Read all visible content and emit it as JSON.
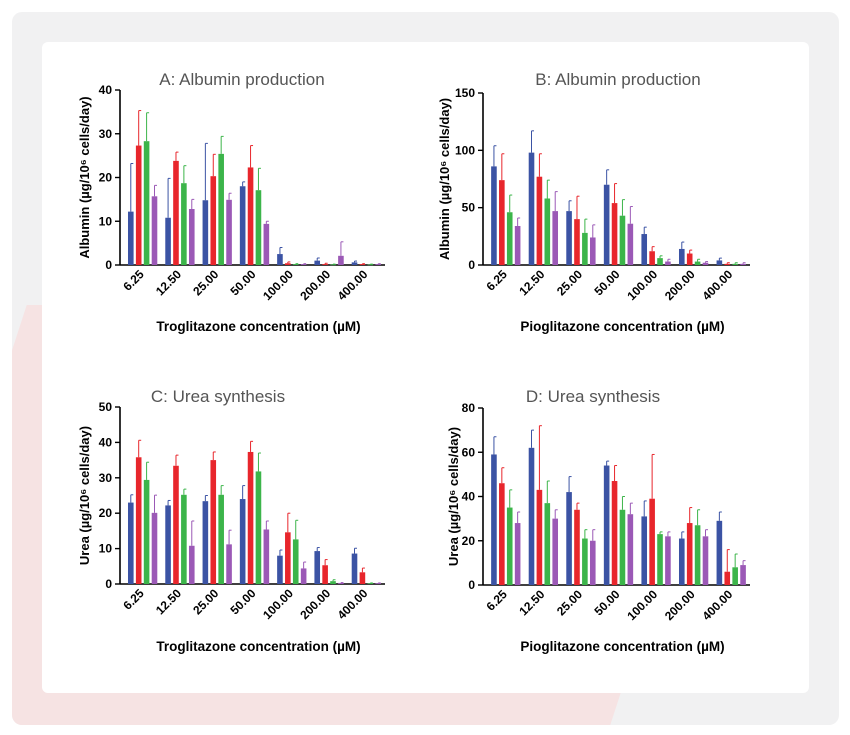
{
  "colors": {
    "s1": "#3b53a4",
    "s2": "#e8262c",
    "s3": "#3cb54a",
    "s4": "#9b59b6"
  },
  "chart_data": [
    {
      "type": "bar",
      "title": "A: Albumin production",
      "ylabel": "Albumin (µg/10⁶ cells/day)",
      "xlabel": "Troglitazone concentration (µM)",
      "categories": [
        "6.25",
        "12.50",
        "25.00",
        "50.00",
        "100.00",
        "200.00",
        "400.00"
      ],
      "yticks": [
        "0",
        "10",
        "20",
        "30",
        "40"
      ],
      "ylim": [
        0,
        40
      ],
      "series": [
        {
          "values": [
            12.2,
            10.8,
            14.8,
            18.0,
            2.5,
            1.0,
            0.6
          ],
          "errors": [
            11,
            9,
            13,
            1,
            1.5,
            0.6,
            0.3
          ]
        },
        {
          "values": [
            27.3,
            23.8,
            20.3,
            22.3,
            0.4,
            0.2,
            0.2
          ],
          "errors": [
            8,
            2,
            5,
            5,
            0.3,
            0.2,
            0.1
          ]
        },
        {
          "values": [
            28.3,
            18.7,
            25.4,
            17.1,
            0.2,
            0.1,
            0.1
          ],
          "errors": [
            6.5,
            4,
            4,
            5,
            0.1,
            0.1,
            0.1
          ]
        },
        {
          "values": [
            15.7,
            12.8,
            14.9,
            9.4,
            0.2,
            2.1,
            0.2
          ],
          "errors": [
            2.5,
            2.2,
            1.5,
            0.6,
            0.1,
            3.2,
            0.1
          ]
        }
      ]
    },
    {
      "type": "bar",
      "title": "B: Albumin production",
      "ylabel": "Albumin (µg/10⁶ cells/day)",
      "xlabel": "Pioglitazone concentration (µM)",
      "categories": [
        "6.25",
        "12.50",
        "25.00",
        "50.00",
        "100.00",
        "200.00",
        "400.00"
      ],
      "yticks": [
        "0",
        "50",
        "100",
        "150"
      ],
      "ylim": [
        0,
        150
      ],
      "series": [
        {
          "values": [
            86,
            98,
            47,
            70,
            27,
            14,
            4
          ],
          "errors": [
            18,
            19,
            9,
            13,
            6,
            6,
            2
          ]
        },
        {
          "values": [
            74,
            77,
            40,
            54,
            12,
            10,
            1
          ],
          "errors": [
            23,
            20,
            20,
            17,
            4,
            3,
            1
          ]
        },
        {
          "values": [
            46,
            58,
            28,
            43,
            6,
            3,
            1
          ],
          "errors": [
            15,
            16,
            12,
            14,
            2,
            2,
            1
          ]
        },
        {
          "values": [
            34,
            47,
            24,
            36,
            3,
            2,
            1
          ],
          "errors": [
            7,
            17,
            11,
            15,
            2,
            1,
            1
          ]
        }
      ]
    },
    {
      "type": "bar",
      "title": "C: Urea synthesis",
      "ylabel": "Urea (µg/10⁶ cells/day)",
      "xlabel": "Troglitazone concentration (µM)",
      "categories": [
        "6.25",
        "12.50",
        "25.00",
        "50.00",
        "100.00",
        "200.00",
        "400.00"
      ],
      "yticks": [
        "0",
        "10",
        "20",
        "30",
        "40",
        "50"
      ],
      "ylim": [
        0,
        50
      ],
      "series": [
        {
          "values": [
            23.0,
            22.2,
            23.4,
            24.0,
            8.0,
            9.3,
            8.6
          ],
          "errors": [
            2.2,
            1.4,
            1.6,
            3.8,
            1.6,
            1.0,
            1.5
          ]
        },
        {
          "values": [
            35.8,
            33.4,
            35.0,
            37.3,
            14.6,
            5.3,
            3.3
          ],
          "errors": [
            4.8,
            3.0,
            2.3,
            3.0,
            5.4,
            1.6,
            1.2
          ]
        },
        {
          "values": [
            29.4,
            25.2,
            25.2,
            31.8,
            12.6,
            0.8,
            0.2
          ],
          "errors": [
            5.0,
            1.6,
            2.6,
            5.2,
            5.4,
            0.4,
            0.1
          ]
        },
        {
          "values": [
            20.1,
            10.8,
            11.2,
            15.4,
            4.4,
            0.3,
            0.2
          ],
          "errors": [
            5.0,
            7.0,
            4.0,
            2.4,
            1.8,
            0.1,
            0.1
          ]
        }
      ]
    },
    {
      "type": "bar",
      "title": "D: Urea synthesis",
      "ylabel": "Urea (µg/10⁶ cells/day)",
      "xlabel": "Pioglitazone concentration (µM)",
      "categories": [
        "6.25",
        "12.50",
        "25.00",
        "50.00",
        "100.00",
        "200.00",
        "400.00"
      ],
      "yticks": [
        "0",
        "20",
        "40",
        "60",
        "80"
      ],
      "ylim": [
        0,
        80
      ],
      "series": [
        {
          "values": [
            59,
            62,
            42,
            54,
            31,
            21,
            29
          ],
          "errors": [
            8,
            8,
            7,
            2,
            7,
            3,
            4
          ]
        },
        {
          "values": [
            46,
            43,
            34,
            47,
            39,
            28,
            6
          ],
          "errors": [
            7,
            29,
            3,
            7,
            20,
            7,
            10
          ]
        },
        {
          "values": [
            35,
            37,
            21,
            34,
            23,
            27,
            8
          ],
          "errors": [
            8,
            10,
            4,
            6,
            1,
            7,
            6
          ]
        },
        {
          "values": [
            28,
            30,
            20,
            32,
            22,
            22,
            9
          ],
          "errors": [
            5,
            4,
            5,
            5,
            2,
            3,
            2
          ]
        }
      ]
    }
  ]
}
